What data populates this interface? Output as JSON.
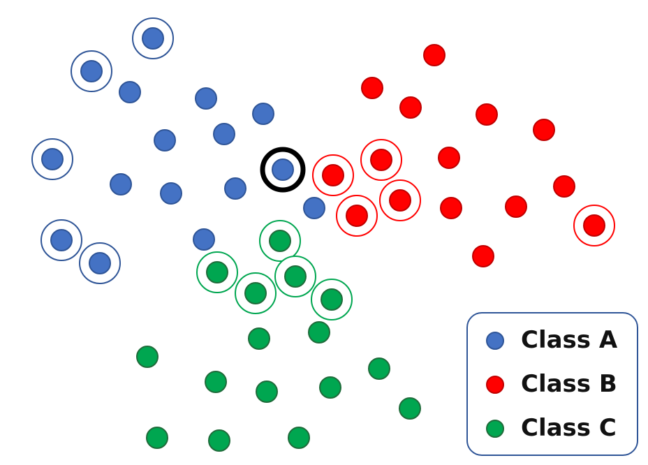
{
  "colors": {
    "class_a": "#4472C4",
    "class_b": "#FF0000",
    "class_c": "#00A650",
    "class_a_border": "#2F5597",
    "class_b_border": "#C00000",
    "class_c_border": "#1F6B3A",
    "query_ring": "#000000",
    "legend_border": "#2F5597"
  },
  "legend": {
    "items": [
      {
        "label": "Class A",
        "class": "a"
      },
      {
        "label": "Class B",
        "class": "b"
      },
      {
        "label": "Class C",
        "class": "c"
      }
    ]
  },
  "query_point": {
    "class": "a"
  },
  "points": [
    {
      "class": "a",
      "ringed": true
    },
    {
      "class": "a",
      "ringed": true
    },
    {
      "class": "a",
      "ringed": false
    },
    {
      "class": "a",
      "ringed": false
    },
    {
      "class": "a",
      "ringed": false
    },
    {
      "class": "a",
      "ringed": false
    },
    {
      "class": "a",
      "ringed": false
    },
    {
      "class": "a",
      "ringed": true
    },
    {
      "class": "a",
      "ringed": false
    },
    {
      "class": "a",
      "ringed": false
    },
    {
      "class": "a",
      "ringed": false
    },
    {
      "class": "a",
      "ringed": false
    },
    {
      "class": "a",
      "ringed": true
    },
    {
      "class": "a",
      "ringed": true
    },
    {
      "class": "a",
      "ringed": false
    },
    {
      "class": "b",
      "ringed": false
    },
    {
      "class": "b",
      "ringed": false
    },
    {
      "class": "b",
      "ringed": false
    },
    {
      "class": "b",
      "ringed": false
    },
    {
      "class": "b",
      "ringed": false
    },
    {
      "class": "b",
      "ringed": true
    },
    {
      "class": "b",
      "ringed": true
    },
    {
      "class": "b",
      "ringed": false
    },
    {
      "class": "b",
      "ringed": true
    },
    {
      "class": "b",
      "ringed": false
    },
    {
      "class": "b",
      "ringed": false
    },
    {
      "class": "b",
      "ringed": true
    },
    {
      "class": "b",
      "ringed": false
    },
    {
      "class": "b",
      "ringed": true
    },
    {
      "class": "b",
      "ringed": false
    },
    {
      "class": "c",
      "ringed": true
    },
    {
      "class": "c",
      "ringed": true
    },
    {
      "class": "c",
      "ringed": true
    },
    {
      "class": "c",
      "ringed": true
    },
    {
      "class": "c",
      "ringed": true
    },
    {
      "class": "c",
      "ringed": false
    },
    {
      "class": "c",
      "ringed": false
    },
    {
      "class": "c",
      "ringed": false
    },
    {
      "class": "c",
      "ringed": false
    },
    {
      "class": "c",
      "ringed": false
    },
    {
      "class": "c",
      "ringed": false
    },
    {
      "class": "c",
      "ringed": false
    },
    {
      "class": "c",
      "ringed": false
    },
    {
      "class": "c",
      "ringed": false
    },
    {
      "class": "c",
      "ringed": false
    },
    {
      "class": "c",
      "ringed": false
    }
  ]
}
